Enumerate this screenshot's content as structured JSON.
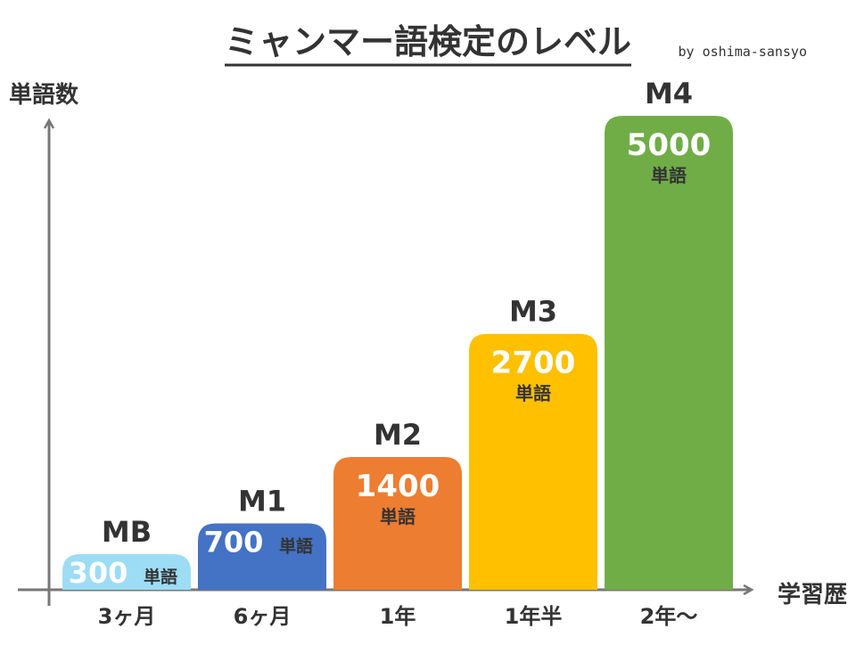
{
  "header": {
    "title": "ミャンマー語検定のレベル",
    "credit": "by oshima-sansyo"
  },
  "chart_data": {
    "type": "bar",
    "title": "ミャンマー語検定のレベル",
    "ylabel": "単語数",
    "xlabel": "学習歴",
    "categories": [
      "3ヶ月",
      "6ヶ月",
      "1年",
      "1年半",
      "2年〜"
    ],
    "level_names": [
      "MB",
      "M1",
      "M2",
      "M3",
      "M4"
    ],
    "values": [
      300,
      700,
      1400,
      2700,
      5000
    ],
    "value_unit": "単語",
    "bar_colors": [
      "#9ddcf5",
      "#4472c4",
      "#ed7d31",
      "#ffc000",
      "#70ad47"
    ],
    "axis_color": "#777777",
    "ylim": [
      0,
      5000
    ],
    "grid": false,
    "legend": "none"
  }
}
